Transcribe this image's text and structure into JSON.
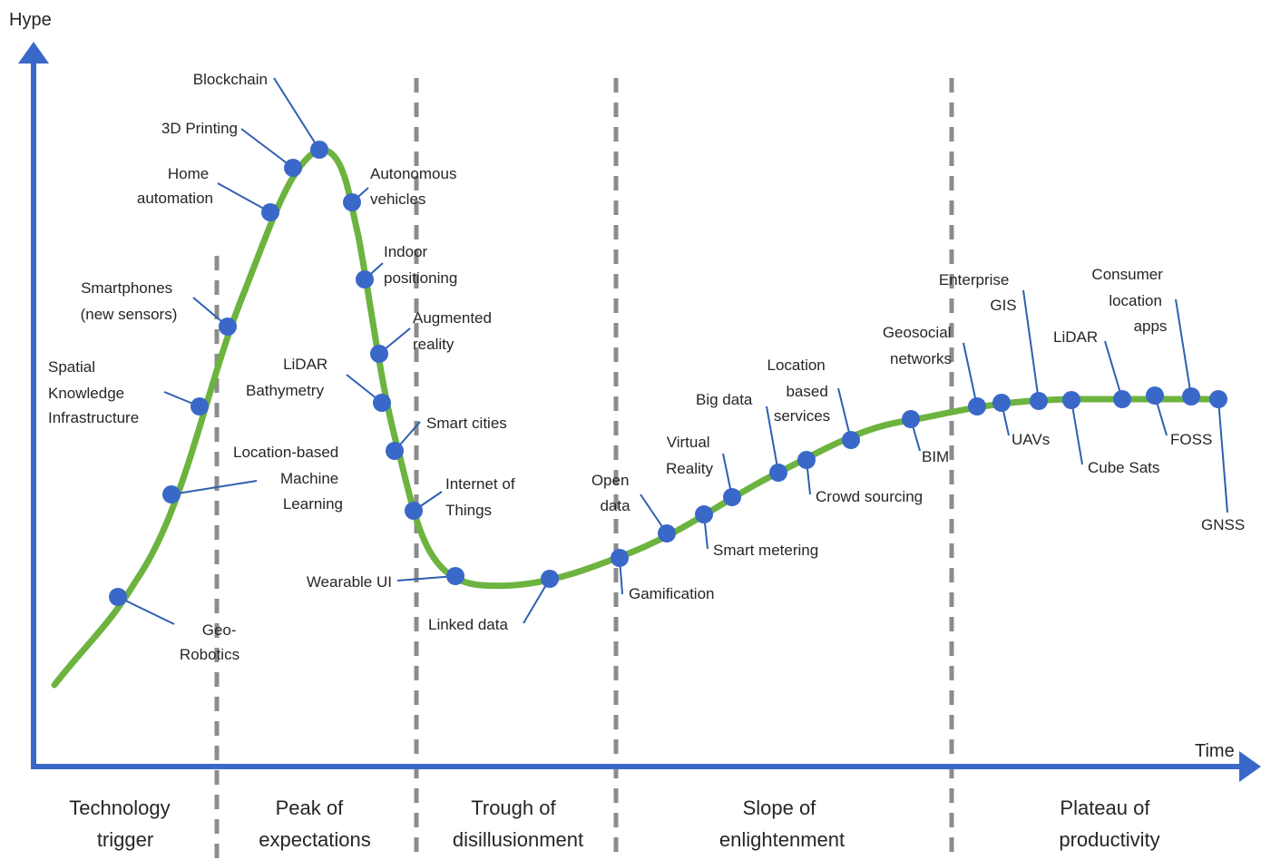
{
  "axes": {
    "y_label": "Hype",
    "x_label": "Time"
  },
  "phases": [
    {
      "id": "technology-trigger",
      "lines": [
        "Technology",
        "trigger"
      ]
    },
    {
      "id": "peak",
      "lines": [
        "Peak of",
        "expectations"
      ]
    },
    {
      "id": "trough",
      "lines": [
        "Trough of",
        "disillusionment"
      ]
    },
    {
      "id": "slope",
      "lines": [
        "Slope of",
        "enlightenment"
      ]
    },
    {
      "id": "plateau",
      "lines": [
        "Plateau of",
        "productivity"
      ]
    }
  ],
  "technologies": [
    {
      "id": "geo-robotics",
      "lines": [
        "Geo-",
        "Robotics"
      ]
    },
    {
      "id": "location-based-machine-learning",
      "lines": [
        "Location-based",
        "Machine",
        "Learning"
      ]
    },
    {
      "id": "spatial-knowledge-infrastructure",
      "lines": [
        "Spatial",
        "Knowledge",
        "Infrastructure"
      ]
    },
    {
      "id": "smartphones",
      "lines": [
        "Smartphones",
        "(new sensors)"
      ]
    },
    {
      "id": "home-automation",
      "lines": [
        "Home",
        "automation"
      ]
    },
    {
      "id": "3d-printing",
      "lines": [
        "3D Printing"
      ]
    },
    {
      "id": "blockchain",
      "lines": [
        "Blockchain"
      ]
    },
    {
      "id": "autonomous-vehicles",
      "lines": [
        "Autonomous",
        "vehicles"
      ]
    },
    {
      "id": "indoor-positioning",
      "lines": [
        "Indoor",
        "positioning"
      ]
    },
    {
      "id": "augmented-reality",
      "lines": [
        "Augmented",
        "reality"
      ]
    },
    {
      "id": "lidar-bathymetry",
      "lines": [
        "LiDAR",
        "Bathymetry"
      ]
    },
    {
      "id": "smart-cities",
      "lines": [
        "Smart cities"
      ]
    },
    {
      "id": "internet-of-things",
      "lines": [
        "Internet of",
        "Things"
      ]
    },
    {
      "id": "wearable-ui",
      "lines": [
        "Wearable UI"
      ]
    },
    {
      "id": "linked-data",
      "lines": [
        "Linked data"
      ]
    },
    {
      "id": "gamification",
      "lines": [
        "Gamification"
      ]
    },
    {
      "id": "open-data",
      "lines": [
        "Open",
        "data"
      ]
    },
    {
      "id": "smart-metering",
      "lines": [
        "Smart metering"
      ]
    },
    {
      "id": "virtual-reality",
      "lines": [
        "Virtual",
        "Reality"
      ]
    },
    {
      "id": "big-data",
      "lines": [
        "Big data"
      ]
    },
    {
      "id": "crowd-sourcing",
      "lines": [
        "Crowd sourcing"
      ]
    },
    {
      "id": "location-based-services",
      "lines": [
        "Location",
        "based",
        "services"
      ]
    },
    {
      "id": "bim",
      "lines": [
        "BIM"
      ]
    },
    {
      "id": "geosocial-networks",
      "lines": [
        "Geosocial",
        "networks"
      ]
    },
    {
      "id": "uavs",
      "lines": [
        "UAVs"
      ]
    },
    {
      "id": "enterprise-gis",
      "lines": [
        "Enterprise",
        "GIS"
      ]
    },
    {
      "id": "cube-sats",
      "lines": [
        "Cube Sats"
      ]
    },
    {
      "id": "lidar",
      "lines": [
        "LiDAR"
      ]
    },
    {
      "id": "foss",
      "lines": [
        "FOSS"
      ]
    },
    {
      "id": "consumer-location-apps",
      "lines": [
        "Consumer",
        "location",
        "apps"
      ]
    },
    {
      "id": "gnss",
      "lines": [
        "GNSS"
      ]
    }
  ],
  "colors": {
    "curve": "#6db33f",
    "axis": "#3a68c8",
    "marker": "#3a68c8",
    "leader": "#2f5fb0",
    "divider": "#8c8c8c"
  }
}
